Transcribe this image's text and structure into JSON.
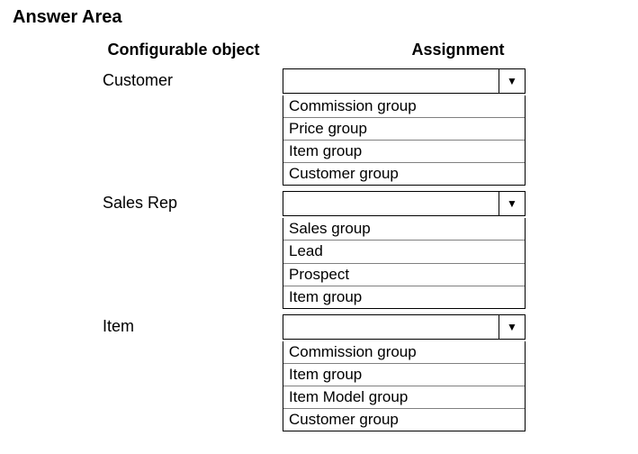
{
  "page_title": "Answer Area",
  "columns": {
    "left_header": "Configurable object",
    "right_header": "Assignment"
  },
  "rows": [
    {
      "object": "Customer",
      "selected": "",
      "options": [
        "Commission group",
        "Price group",
        "Item group",
        "Customer group"
      ]
    },
    {
      "object": "Sales Rep",
      "selected": "",
      "options": [
        "Sales group",
        "Lead",
        "Prospect",
        "Item group"
      ]
    },
    {
      "object": "Item",
      "selected": "",
      "options": [
        "Commission group",
        "Item group",
        "Item Model group",
        "Customer group"
      ]
    }
  ],
  "style": {
    "dropdown_border_color": "#000000",
    "option_divider_color": "#808080",
    "background_color": "#ffffff",
    "arrow_glyph": "▼",
    "title_fontsize": 20,
    "header_fontsize": 18,
    "label_fontsize": 18,
    "option_fontsize": 17
  }
}
